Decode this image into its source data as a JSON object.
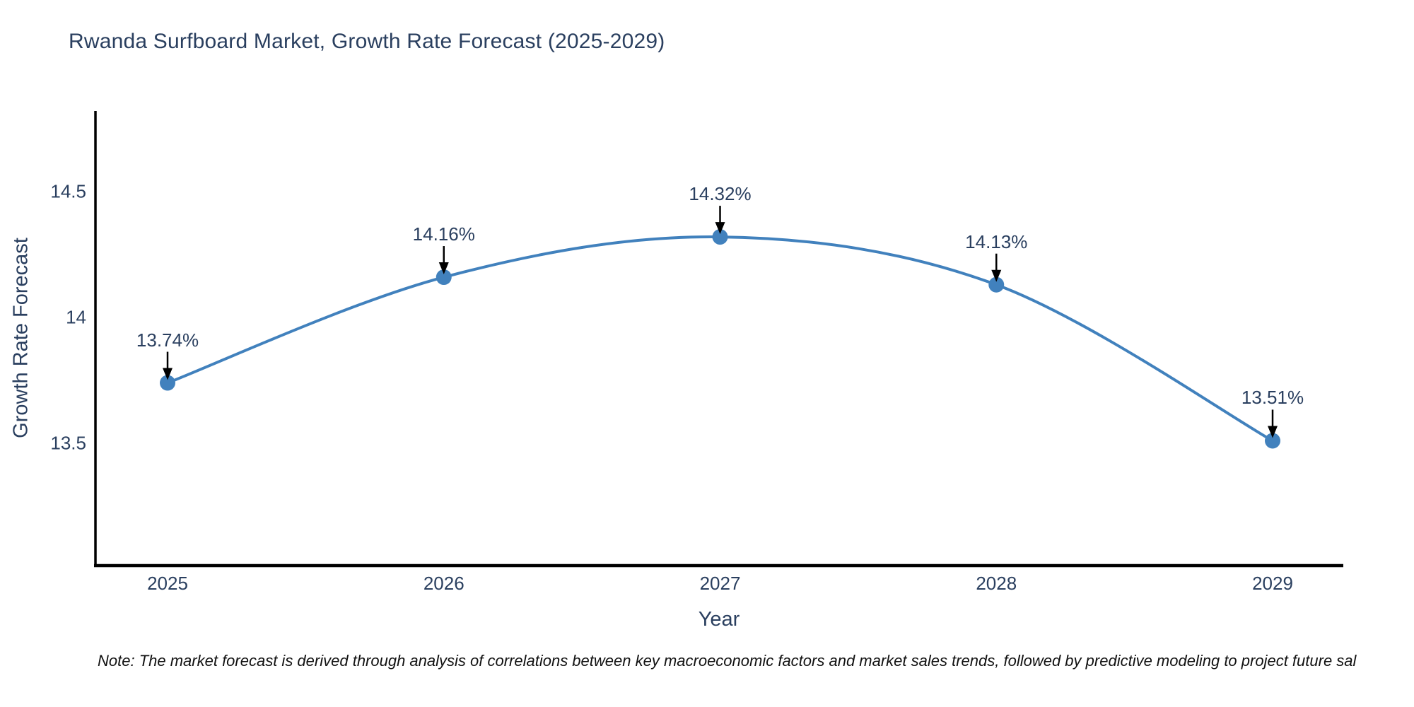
{
  "title": {
    "text": "Rwanda Surfboard Market, Growth Rate Forecast (2025-2029)"
  },
  "note": {
    "text": "Note: The market forecast is derived through analysis of correlations between key macroeconomic factors and market sales trends, followed by predictive modeling to project future sal"
  },
  "chart_data": {
    "type": "line",
    "line_shape": "spline",
    "title": "Rwanda Surfboard Market, Growth Rate Forecast (2025-2029)",
    "xlabel": "Year",
    "ylabel": "Growth Rate Forecast",
    "x": [
      2025,
      2026,
      2027,
      2028,
      2029
    ],
    "x_tick_labels": [
      "2025",
      "2026",
      "2027",
      "2028",
      "2029"
    ],
    "series": [
      {
        "name": "Growth Rate Forecast",
        "values": [
          13.74,
          14.16,
          14.32,
          14.13,
          13.51
        ]
      }
    ],
    "point_labels": [
      "13.74%",
      "14.16%",
      "14.32%",
      "14.13%",
      "13.51%"
    ],
    "yticks": [
      13.5,
      14,
      14.5
    ],
    "ylim": [
      13.0,
      14.82
    ],
    "xlim": [
      2024.74,
      2029.26
    ],
    "grid": false,
    "legend": "none",
    "annotation_style": "down-arrow",
    "colors": {
      "line": "#4181bd",
      "marker": "#4181bd",
      "axis": "#000000",
      "text": "#2a3f5f",
      "arrow": "#000000",
      "background": "#ffffff"
    }
  }
}
